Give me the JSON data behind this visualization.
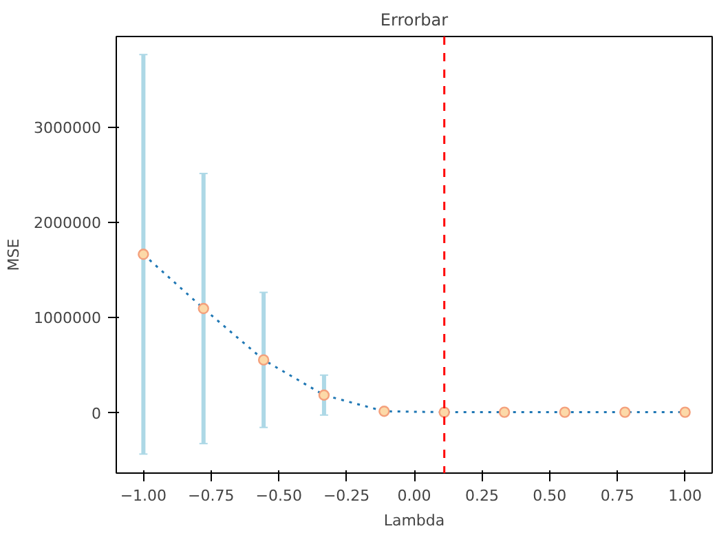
{
  "chart_data": {
    "type": "line",
    "title": "Errorbar",
    "xlabel": "Lambda",
    "ylabel": "MSE",
    "x": [
      -1.0,
      -0.778,
      -0.556,
      -0.333,
      -0.111,
      0.111,
      0.333,
      0.556,
      0.778,
      1.0
    ],
    "series": [
      {
        "color": "#1f77b4",
        "values": [
          1660000,
          1090000,
          550000,
          180000,
          10000,
          0,
          0,
          0,
          0,
          0
        ],
        "errors": [
          2100000,
          1420000,
          710000,
          210000,
          null,
          null,
          null,
          null,
          null,
          null
        ]
      }
    ],
    "marker": "circle",
    "line_style": "dotted",
    "xlim": [
      -1.1,
      1.1
    ],
    "ylim": [
      -640000,
      3950000
    ],
    "xticks": [
      {
        "value": -1.0,
        "label": "−1.00"
      },
      {
        "value": -0.75,
        "label": "−0.75"
      },
      {
        "value": -0.5,
        "label": "−0.50"
      },
      {
        "value": -0.25,
        "label": "−0.25"
      },
      {
        "value": 0,
        "label": "0.00"
      },
      {
        "value": 0.25,
        "label": "0.25"
      },
      {
        "value": 0.5,
        "label": "0.50"
      },
      {
        "value": 0.75,
        "label": "0.75"
      },
      {
        "value": 1.0,
        "label": "1.00"
      }
    ],
    "yticks": [
      0,
      1000000,
      2000000,
      3000000
    ],
    "ref_lines": [
      {
        "axis": "x",
        "value": 0.111,
        "color": "#ff0000",
        "line_style": "dashed"
      }
    ],
    "grid": false
  }
}
